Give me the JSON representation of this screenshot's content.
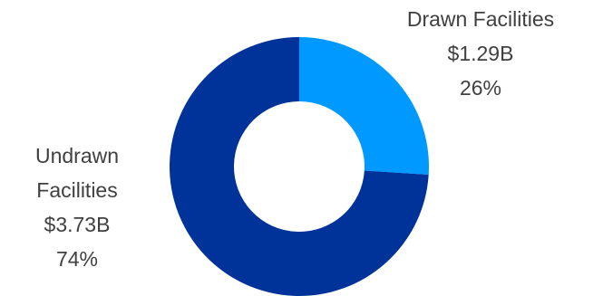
{
  "chart_data": {
    "type": "donut",
    "categories": [
      "Drawn Facilities",
      "Undrawn Facilities"
    ],
    "values": [
      26,
      74
    ],
    "value_labels": [
      "26%",
      "74%"
    ],
    "amount_labels": [
      "$1.29B",
      "$3.73B"
    ],
    "colors": [
      "#0099ff",
      "#003399"
    ]
  }
}
